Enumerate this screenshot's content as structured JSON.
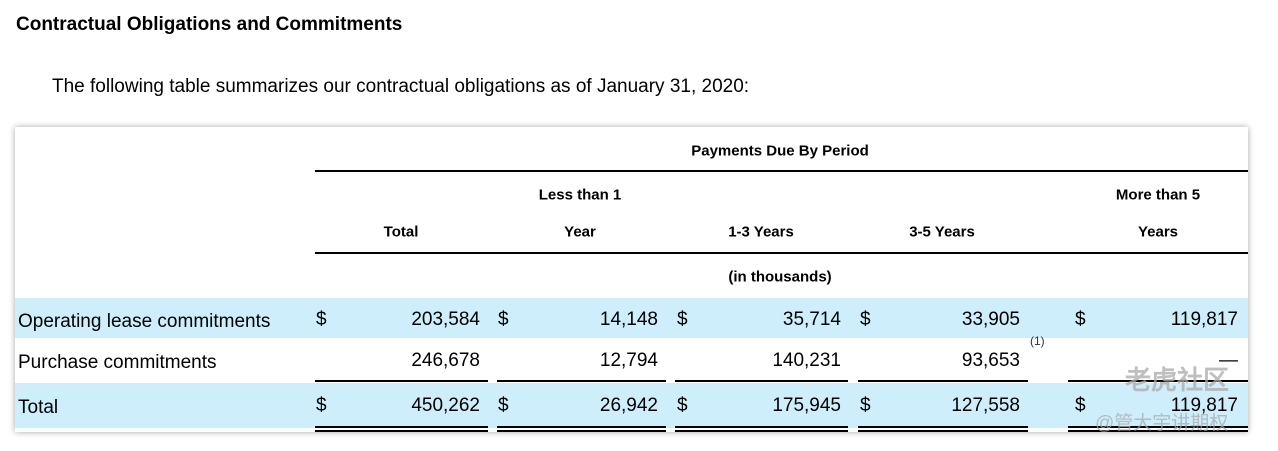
{
  "title": "Contractual Obligations and Commitments",
  "intro": "The following table summarizes our contractual obligations as of January 31, 2020:",
  "table": {
    "group_header": "Payments Due By Period",
    "columns": [
      [
        "Total"
      ],
      [
        "Less than 1",
        "Year"
      ],
      [
        "1-3 Years"
      ],
      [
        "3-5 Years"
      ],
      [
        "More than 5",
        "Years"
      ]
    ],
    "units": "(in thousands)",
    "rows": [
      {
        "label": "Operating lease commitments",
        "cells": [
          {
            "symbol": "$",
            "value": "203,584"
          },
          {
            "symbol": "$",
            "value": "14,148"
          },
          {
            "symbol": "$",
            "value": "35,714"
          },
          {
            "symbol": "$",
            "value": "33,905"
          },
          {
            "symbol": "$",
            "value": "119,817"
          }
        ]
      },
      {
        "label": "Purchase commitments",
        "cells": [
          {
            "value": "246,678"
          },
          {
            "value": "12,794"
          },
          {
            "value": "140,231"
          },
          {
            "value": "93,653",
            "note": "(1)"
          },
          {
            "value": "—"
          }
        ]
      },
      {
        "label": "Total",
        "cells": [
          {
            "symbol": "$",
            "value": "450,262"
          },
          {
            "symbol": "$",
            "value": "26,942"
          },
          {
            "symbol": "$",
            "value": "175,945"
          },
          {
            "symbol": "$",
            "value": "127,558"
          },
          {
            "symbol": "$",
            "value": "119,817"
          }
        ]
      }
    ]
  },
  "watermark": {
    "brand": "老虎社区",
    "author": "@管大宇讲期权"
  }
}
